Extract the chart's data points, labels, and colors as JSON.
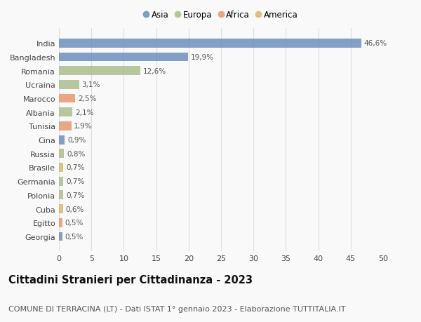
{
  "countries": [
    "India",
    "Bangladesh",
    "Romania",
    "Ucraina",
    "Marocco",
    "Albania",
    "Tunisia",
    "Cina",
    "Russia",
    "Brasile",
    "Germania",
    "Polonia",
    "Cuba",
    "Egitto",
    "Georgia"
  ],
  "values": [
    46.6,
    19.9,
    12.6,
    3.1,
    2.5,
    2.1,
    1.9,
    0.9,
    0.8,
    0.7,
    0.7,
    0.7,
    0.6,
    0.5,
    0.5
  ],
  "labels": [
    "46,6%",
    "19,9%",
    "12,6%",
    "3,1%",
    "2,5%",
    "2,1%",
    "1,9%",
    "0,9%",
    "0,8%",
    "0,7%",
    "0,7%",
    "0,7%",
    "0,6%",
    "0,5%",
    "0,5%"
  ],
  "colors": [
    "#6b8cba",
    "#6b8cba",
    "#a8bc8a",
    "#a8bc8a",
    "#e8956b",
    "#a8bc8a",
    "#e8956b",
    "#6b8cba",
    "#a8bc8a",
    "#d4b86a",
    "#a8bc8a",
    "#a8bc8a",
    "#d4b86a",
    "#e8956b",
    "#6b8cba"
  ],
  "legend_labels": [
    "Asia",
    "Europa",
    "Africa",
    "America"
  ],
  "legend_colors": [
    "#6b8cba",
    "#a8bc8a",
    "#e8956b",
    "#d4b86a"
  ],
  "title": "Cittadini Stranieri per Cittadinanza - 2023",
  "subtitle": "COMUNE DI TERRACINA (LT) - Dati ISTAT 1° gennaio 2023 - Elaborazione TUTTITALIA.IT",
  "xlim": [
    0,
    50
  ],
  "xticks": [
    0,
    5,
    10,
    15,
    20,
    25,
    30,
    35,
    40,
    45,
    50
  ],
  "background_color": "#f9f9f9",
  "grid_color": "#dddddd",
  "bar_height": 0.65,
  "title_fontsize": 10.5,
  "subtitle_fontsize": 8,
  "label_fontsize": 7.5,
  "tick_fontsize": 8,
  "legend_fontsize": 8.5
}
